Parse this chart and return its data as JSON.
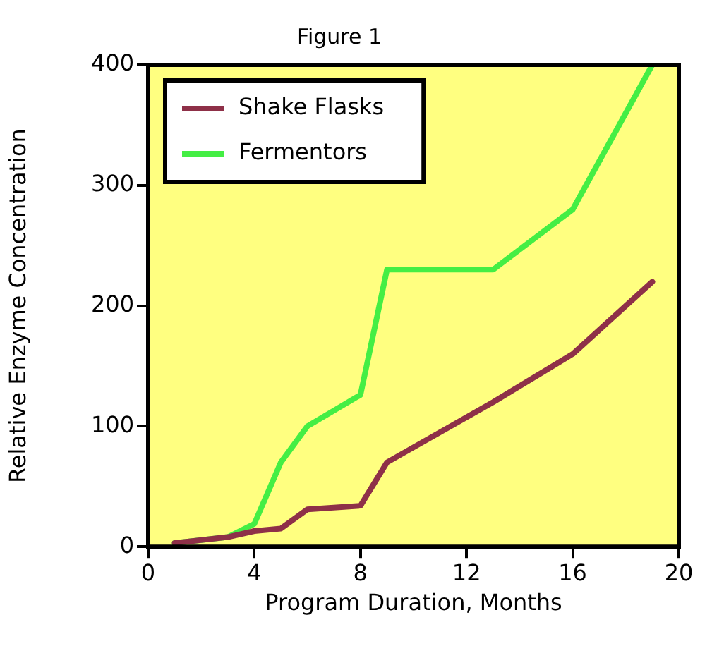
{
  "chart_data": {
    "type": "line",
    "title": "Figure 1",
    "xlabel": "Program Duration, Months",
    "ylabel": "Relative Enzyme Concentration",
    "xlim": [
      0,
      20
    ],
    "xticks": [
      0,
      4,
      8,
      12,
      16,
      20
    ],
    "ylim": [
      0,
      400
    ],
    "yticks": [
      0,
      100,
      200,
      300,
      400
    ],
    "grid": false,
    "legend": "top left",
    "marker": "none",
    "line_style": "solid",
    "series": [
      {
        "name": "Shake Flasks",
        "color": "#8e3048",
        "x": [
          1,
          3,
          4,
          5,
          6,
          8,
          9,
          13,
          16,
          19
        ],
        "values": [
          3,
          8,
          13,
          15,
          31,
          34,
          70,
          120,
          160,
          220
        ]
      },
      {
        "name": "Fermentors",
        "color": "#44ee44",
        "x": [
          1,
          3,
          4,
          5,
          6,
          8,
          9,
          13,
          16,
          19
        ],
        "values": [
          3,
          8,
          19,
          70,
          100,
          126,
          230,
          230,
          280,
          400
        ]
      }
    ]
  }
}
